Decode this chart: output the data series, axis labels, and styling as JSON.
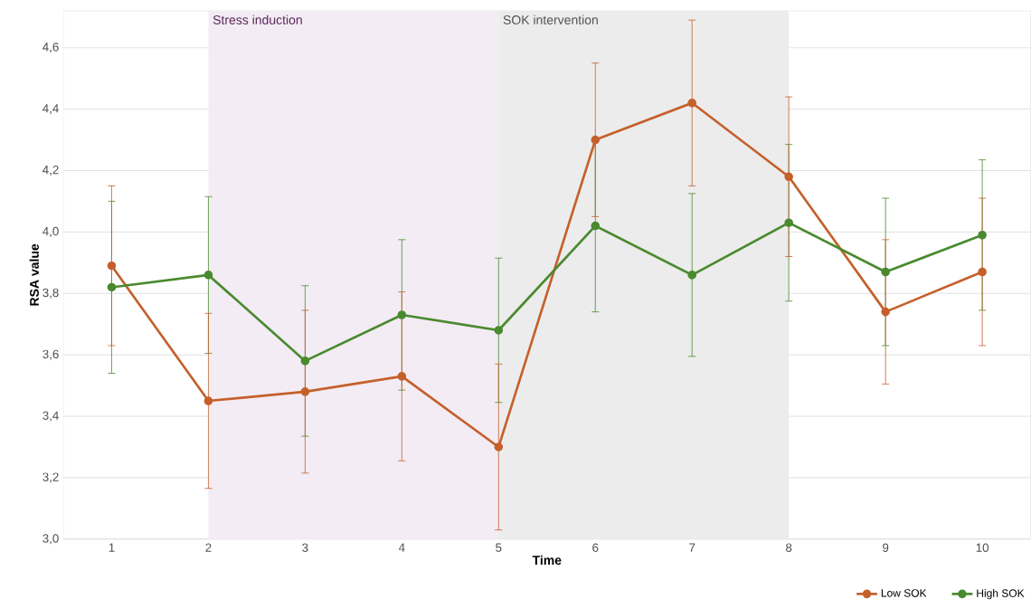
{
  "chart_data": {
    "type": "line",
    "xlabel": "Time",
    "ylabel": "RSA value",
    "x": [
      1,
      2,
      3,
      4,
      5,
      6,
      7,
      8,
      9,
      10
    ],
    "series": [
      {
        "name": "Low SOK",
        "color": "#c5602b",
        "values": [
          3.89,
          3.45,
          3.48,
          3.53,
          3.3,
          4.3,
          4.42,
          4.18,
          3.74,
          3.87
        ],
        "errors": [
          0.26,
          0.285,
          0.265,
          0.275,
          0.27,
          0.25,
          0.27,
          0.26,
          0.235,
          0.24
        ]
      },
      {
        "name": "High SOK",
        "color": "#4a8a2f",
        "values": [
          3.82,
          3.86,
          3.58,
          3.73,
          3.68,
          4.02,
          3.86,
          4.03,
          3.87,
          3.99
        ],
        "errors": [
          0.28,
          0.255,
          0.245,
          0.245,
          0.235,
          0.28,
          0.265,
          0.255,
          0.24,
          0.245
        ]
      }
    ],
    "bands": [
      {
        "axis": "x",
        "from": 2,
        "to": 5,
        "label": "Stress induction",
        "color": "#f3ecf4"
      },
      {
        "axis": "x",
        "from": 5,
        "to": 8,
        "label": "SOK intervention",
        "color": "#ececec"
      }
    ],
    "xlim": [
      0.5,
      10.5
    ],
    "xticks": [
      1,
      2,
      3,
      4,
      5,
      6,
      7,
      8,
      9,
      10
    ],
    "ylim": [
      3.0,
      4.72
    ],
    "yticks": [
      {
        "value": 3.0,
        "label": "3,0"
      },
      {
        "value": 3.2,
        "label": "3,2"
      },
      {
        "value": 3.4,
        "label": "3,4"
      },
      {
        "value": 3.6,
        "label": "3,6"
      },
      {
        "value": 3.8,
        "label": "3,8"
      },
      {
        "value": 4.0,
        "label": "4,0"
      },
      {
        "value": 4.2,
        "label": "4,2"
      },
      {
        "value": 4.4,
        "label": "4,4"
      },
      {
        "value": 4.6,
        "label": "4,6"
      }
    ],
    "grid": "y",
    "legend": "bottom right",
    "marker": "circle",
    "line_style": "solid"
  }
}
